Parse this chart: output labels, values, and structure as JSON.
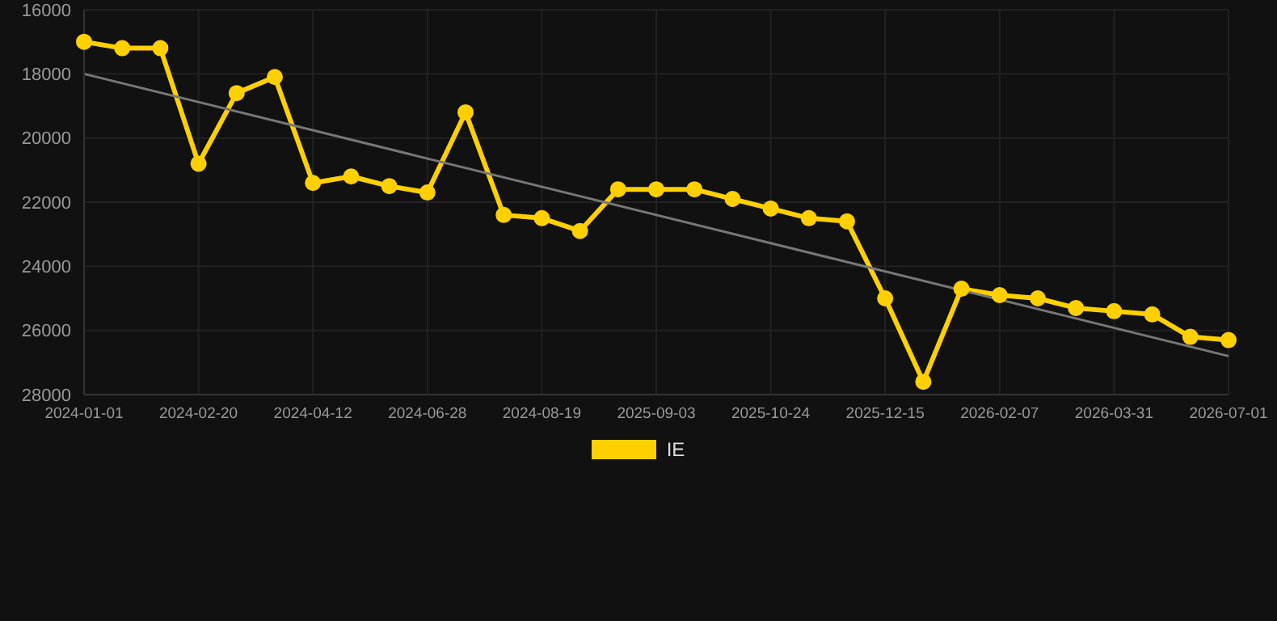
{
  "chart_data": {
    "type": "line",
    "categories": [
      "2024-01-01",
      null,
      null,
      "2024-02-20",
      null,
      null,
      "2024-04-12",
      null,
      null,
      "2024-06-28",
      null,
      null,
      "2024-08-19",
      null,
      null,
      "2025-09-03",
      null,
      null,
      "2025-10-24",
      null,
      null,
      "2025-12-15",
      null,
      null,
      "2026-02-07",
      null,
      null,
      "2026-03-31",
      null,
      null,
      "2026-07-01"
    ],
    "series": [
      {
        "name": "IE",
        "color": "#ffd000",
        "marker": "circle",
        "values": [
          17000,
          17200,
          17200,
          20800,
          18600,
          18100,
          21400,
          21200,
          21500,
          21700,
          19200,
          22400,
          22500,
          22900,
          21600,
          21600,
          21600,
          21900,
          22200,
          22500,
          22600,
          25000,
          27600,
          24700,
          24900,
          25000,
          25300,
          25400,
          25500,
          26200,
          26300
        ]
      },
      {
        "type": "line",
        "color": "#777777",
        "marker": "none",
        "values": [
          18000,
          null,
          null,
          null,
          null,
          null,
          null,
          null,
          null,
          null,
          null,
          null,
          null,
          null,
          null,
          null,
          null,
          null,
          null,
          null,
          null,
          null,
          null,
          null,
          null,
          null,
          null,
          null,
          null,
          null,
          26800
        ]
      }
    ],
    "ylim": [
      28000,
      16000
    ],
    "yticks": [
      16000,
      18000,
      20000,
      22000,
      24000,
      26000,
      28000
    ],
    "grid": true,
    "legend": "bottom"
  }
}
